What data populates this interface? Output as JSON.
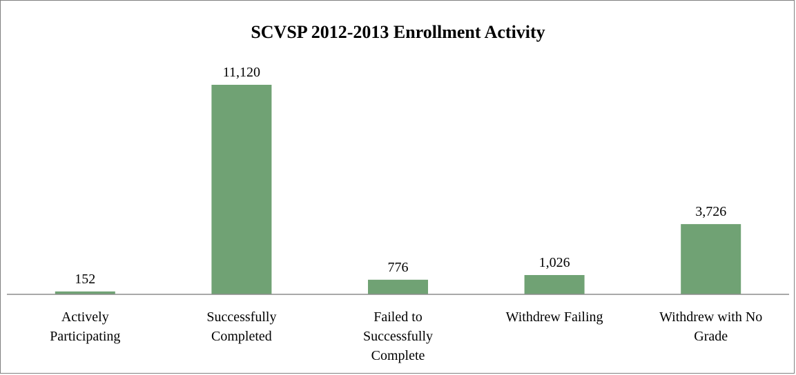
{
  "chart_data": {
    "type": "bar",
    "title": "SCVSP 2012-2013 Enrollment Activity",
    "categories": [
      "Actively Participating",
      "Successfully Completed",
      "Failed to Successfully Complete",
      "Withdrew Failing",
      "Withdrew with No Grade"
    ],
    "category_label_lines": [
      [
        "Actively",
        "Participating"
      ],
      [
        "Successfully",
        "Completed"
      ],
      [
        "Failed to",
        "Successfully",
        "Complete"
      ],
      [
        "Withdrew Failing"
      ],
      [
        "Withdrew with No",
        "Grade"
      ]
    ],
    "values": [
      152,
      11120,
      776,
      1026,
      3726
    ],
    "data_labels": [
      "152",
      "11,120",
      "776",
      "1,026",
      "3,726"
    ],
    "xlabel": "",
    "ylabel": "",
    "ylim": [
      0,
      12000
    ],
    "grid": false,
    "legend": "none",
    "bar_color": "#70a274"
  }
}
